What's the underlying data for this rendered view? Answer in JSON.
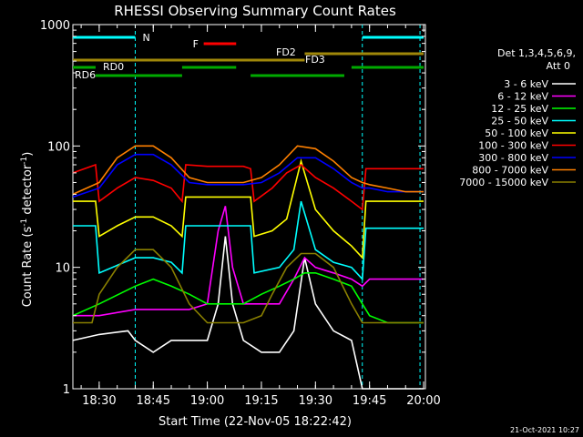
{
  "chart_data": {
    "type": "line",
    "title": "RHESSI Observing Summary Count Rates",
    "xlabel": "Start Time (22-Nov-05 18:22:42)",
    "ylabel_main": "Count Rate (s",
    "ylabel_sup1": "-1",
    "ylabel_mid": " detector",
    "ylabel_sup2": "-1",
    "ylabel_end": ")",
    "y_log": true,
    "ylim": [
      1,
      1000
    ],
    "xlim": [
      "18:22:42",
      "20:00:30"
    ],
    "x_ticks": [
      "18:30",
      "18:45",
      "19:00",
      "19:15",
      "19:30",
      "19:45",
      "20:00"
    ],
    "y_ticks": [
      "1",
      "10",
      "100",
      "1000"
    ],
    "detector_info": [
      "Det 1,3,4,5,6,9,",
      "Att 0"
    ],
    "footer_date": "21-Oct-2021 10:27",
    "legend_position": "right",
    "flags": [
      {
        "label": "N",
        "color": "#00ffff",
        "segments": [
          [
            "18:22:42",
            "18:40"
          ],
          [
            "19:43",
            "20:00"
          ]
        ]
      },
      {
        "label": "F",
        "color": "#ff0000",
        "segments": [
          [
            "18:59",
            "19:08"
          ]
        ]
      },
      {
        "label": "FD2",
        "color": "#a0880a",
        "segments": [
          [
            "18:22:42",
            "19:27"
          ]
        ]
      },
      {
        "label": "FD3",
        "color": "#a0880a",
        "segments": [
          [
            "19:27",
            "20:00"
          ]
        ]
      },
      {
        "label": "RD0",
        "color": "#00aa00",
        "segments": [
          [
            "18:22:42",
            "18:29"
          ],
          [
            "18:53",
            "19:08"
          ],
          [
            "19:40",
            "20:00"
          ]
        ]
      },
      {
        "label": "RD6",
        "color": "#00aa00",
        "segments": [
          [
            "18:29",
            "18:53"
          ],
          [
            "19:12",
            "19:38"
          ]
        ]
      }
    ],
    "eclipse_times": [
      "18:40",
      "19:43",
      "19:59"
    ],
    "eclipse_color": "#00ffff",
    "series": [
      {
        "name": "3 - 6 keV",
        "color": "#ffffff",
        "x": [
          "18:22:42",
          "18:30",
          "18:38",
          "18:40",
          "18:45",
          "18:50",
          "18:55",
          "19:00",
          "19:03",
          "19:05",
          "19:07",
          "19:10",
          "19:15",
          "19:20",
          "19:24",
          "19:27",
          "19:30",
          "19:35",
          "19:40",
          "19:43",
          "19:45",
          "19:50",
          "19:55",
          "20:00"
        ],
        "values": [
          2.5,
          2.8,
          3.0,
          2.5,
          2.0,
          2.5,
          2.5,
          2.5,
          5,
          18,
          5,
          2.5,
          2.0,
          2.0,
          3.0,
          12,
          5,
          3.0,
          2.5,
          1.0,
          1.0,
          1.0,
          1.0,
          1.0
        ]
      },
      {
        "name": "6 - 12 keV",
        "color": "#ff00ff",
        "x": [
          "18:22:42",
          "18:30",
          "18:40",
          "18:45",
          "18:50",
          "18:55",
          "19:00",
          "19:03",
          "19:05",
          "19:07",
          "19:10",
          "19:15",
          "19:20",
          "19:24",
          "19:27",
          "19:30",
          "19:35",
          "19:40",
          "19:43",
          "19:45",
          "19:50",
          "19:55",
          "20:00"
        ],
        "values": [
          4.0,
          4.0,
          4.5,
          4.5,
          4.5,
          4.5,
          5,
          20,
          32,
          10,
          5,
          5,
          5,
          8,
          12,
          10,
          9,
          8,
          7,
          8,
          8,
          8,
          8
        ]
      },
      {
        "name": "12 - 25 keV",
        "color": "#00ff00",
        "x": [
          "18:22:42",
          "18:30",
          "18:40",
          "18:45",
          "18:50",
          "18:55",
          "19:00",
          "19:05",
          "19:10",
          "19:15",
          "19:20",
          "19:24",
          "19:27",
          "19:30",
          "19:35",
          "19:40",
          "19:43",
          "19:45",
          "19:50",
          "19:55",
          "20:00"
        ],
        "values": [
          4.0,
          5,
          7,
          8,
          7,
          6,
          5,
          5,
          5,
          6,
          7,
          8,
          9,
          9,
          8,
          7,
          5,
          4.0,
          3.5,
          3.5,
          3.5
        ]
      },
      {
        "name": "25 - 50 keV",
        "color": "#00ffff",
        "x": [
          "18:22:42",
          "18:29",
          "18:30",
          "18:40",
          "18:45",
          "18:50",
          "18:53",
          "18:54",
          "19:00",
          "19:05",
          "19:10",
          "19:12",
          "19:13",
          "19:20",
          "19:24",
          "19:26",
          "19:30",
          "19:35",
          "19:40",
          "19:43",
          "19:44",
          "19:50",
          "19:55",
          "20:00"
        ],
        "values": [
          22,
          22,
          9,
          12,
          12,
          11,
          9,
          22,
          22,
          22,
          22,
          22,
          9,
          10,
          14,
          35,
          14,
          11,
          10,
          8,
          21,
          21,
          21,
          21
        ]
      },
      {
        "name": "50 - 100 keV",
        "color": "#ffff00",
        "x": [
          "18:22:42",
          "18:29",
          "18:30",
          "18:35",
          "18:40",
          "18:45",
          "18:50",
          "18:53",
          "18:54",
          "19:00",
          "19:05",
          "19:10",
          "19:12",
          "19:13",
          "19:18",
          "19:22",
          "19:26",
          "19:30",
          "19:35",
          "19:40",
          "19:43",
          "19:44",
          "19:50",
          "19:55",
          "20:00"
        ],
        "values": [
          35,
          35,
          18,
          22,
          26,
          26,
          22,
          18,
          38,
          38,
          38,
          38,
          38,
          18,
          20,
          25,
          75,
          30,
          20,
          15,
          12,
          35,
          35,
          35,
          35
        ]
      },
      {
        "name": "100 - 300 keV",
        "color": "#ff0000",
        "x": [
          "18:22:42",
          "18:29",
          "18:30",
          "18:35",
          "18:40",
          "18:45",
          "18:50",
          "18:53",
          "18:54",
          "19:00",
          "19:05",
          "19:10",
          "19:12",
          "19:13",
          "19:18",
          "19:22",
          "19:26",
          "19:30",
          "19:35",
          "19:40",
          "19:43",
          "19:44",
          "19:50",
          "19:55",
          "20:00"
        ],
        "values": [
          60,
          70,
          35,
          45,
          55,
          52,
          45,
          35,
          70,
          68,
          68,
          68,
          65,
          35,
          45,
          60,
          70,
          55,
          45,
          35,
          30,
          65,
          65,
          65,
          65
        ]
      },
      {
        "name": "300 - 800 keV",
        "color": "#0000ff",
        "x": [
          "18:22:42",
          "18:30",
          "18:35",
          "18:40",
          "18:45",
          "18:50",
          "18:55",
          "19:00",
          "19:05",
          "19:10",
          "19:15",
          "19:20",
          "19:25",
          "19:30",
          "19:35",
          "19:40",
          "19:43",
          "19:45",
          "19:50",
          "19:55",
          "20:00"
        ],
        "values": [
          38,
          45,
          70,
          85,
          85,
          70,
          50,
          48,
          48,
          48,
          50,
          60,
          80,
          80,
          65,
          50,
          45,
          45,
          42,
          42,
          42
        ]
      },
      {
        "name": "800 - 7000 keV",
        "color": "#ff8000",
        "x": [
          "18:22:42",
          "18:30",
          "18:35",
          "18:40",
          "18:45",
          "18:50",
          "18:55",
          "19:00",
          "19:05",
          "19:10",
          "19:15",
          "19:20",
          "19:25",
          "19:30",
          "19:35",
          "19:40",
          "19:43",
          "19:45",
          "19:50",
          "19:55",
          "20:00"
        ],
        "values": [
          40,
          50,
          80,
          100,
          100,
          80,
          55,
          50,
          50,
          50,
          55,
          70,
          100,
          95,
          75,
          55,
          50,
          48,
          45,
          42,
          42
        ]
      },
      {
        "name": "7000 - 15000 keV",
        "color": "#8a8000",
        "x": [
          "18:22:42",
          "18:28",
          "18:30",
          "18:35",
          "18:40",
          "18:45",
          "18:50",
          "18:55",
          "19:00",
          "19:05",
          "19:10",
          "19:15",
          "19:18",
          "19:22",
          "19:26",
          "19:30",
          "19:35",
          "19:40",
          "19:43",
          "19:45",
          "19:50",
          "19:55",
          "20:00"
        ],
        "values": [
          3.5,
          3.5,
          6,
          10,
          14,
          14,
          10,
          5,
          3.5,
          3.5,
          3.5,
          4.0,
          6,
          10,
          13,
          13,
          10,
          5,
          3.5,
          3.5,
          3.5,
          3.5,
          3.5
        ]
      }
    ]
  }
}
